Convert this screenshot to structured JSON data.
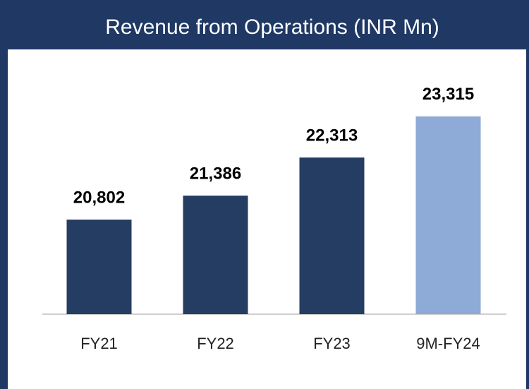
{
  "chart_data": {
    "type": "bar",
    "title": "Revenue from Operations (INR Mn)",
    "categories": [
      "FY21",
      "FY22",
      "FY23",
      "9M-FY24"
    ],
    "values": [
      20802,
      21386,
      22313,
      23315
    ],
    "value_labels": [
      "20,802",
      "21,386",
      "22,313",
      "23,315"
    ],
    "colors": [
      "#263d63",
      "#263d63",
      "#263d63",
      "#8eaad6"
    ],
    "ylim": [
      18500,
      24000
    ]
  }
}
